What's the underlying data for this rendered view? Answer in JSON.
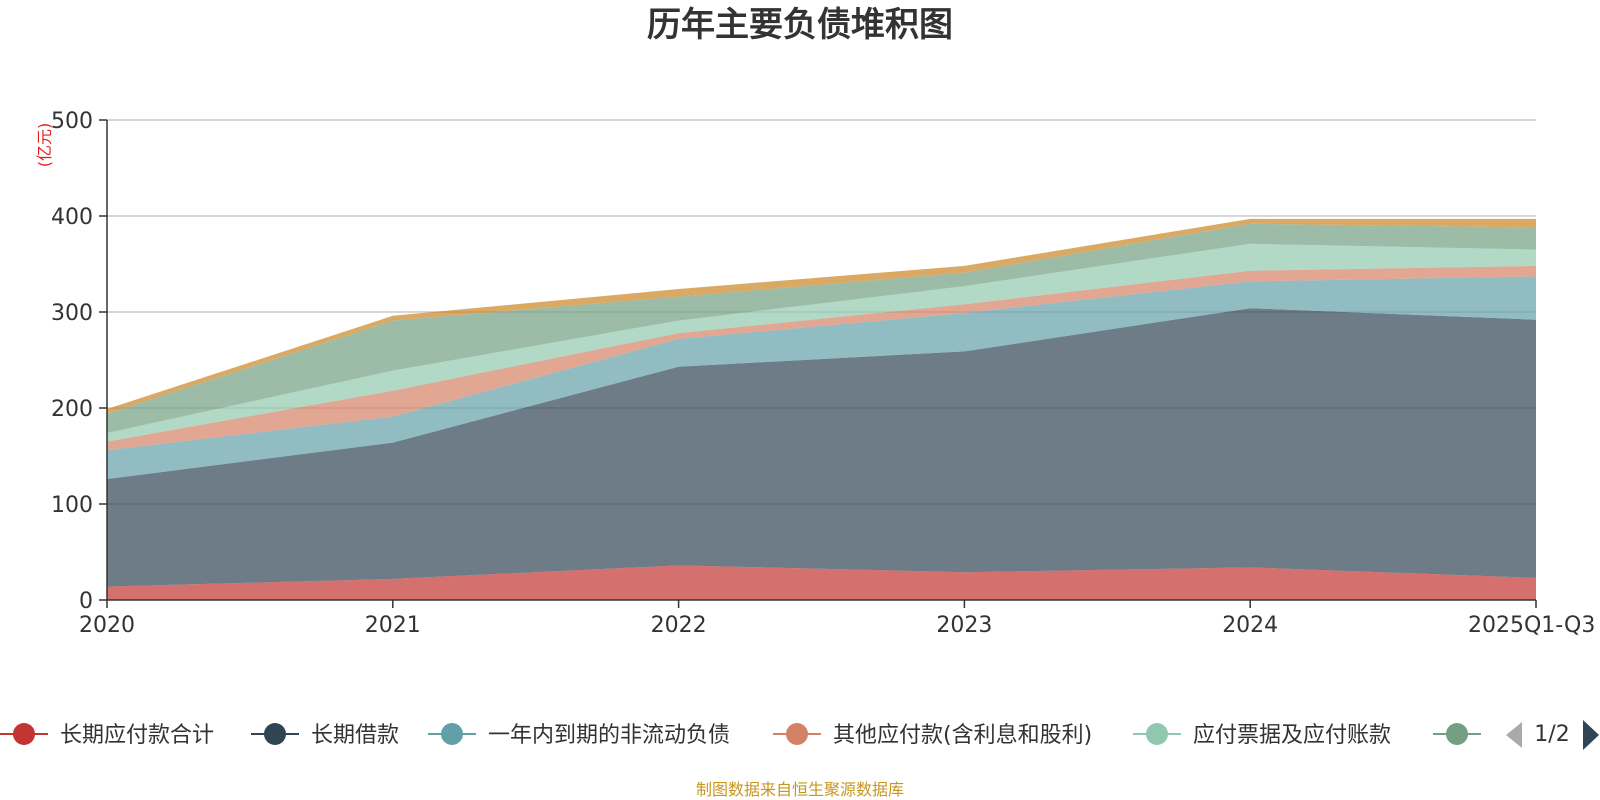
{
  "chart_data": {
    "type": "area",
    "stacked": true,
    "title": "历年主要负债堆积图",
    "unit": "(亿元)",
    "x": [
      "2020",
      "2021",
      "2022",
      "2023",
      "2024",
      "2025Q1-Q3"
    ],
    "ylim": [
      0,
      500
    ],
    "yticks": [
      0,
      100,
      200,
      300,
      400,
      500
    ],
    "grid": true,
    "legend_position": "bottom",
    "series": [
      {
        "name": "长期应付款合计",
        "color": "#c23531",
        "values": [
          14,
          22,
          36,
          29,
          34,
          23
        ]
      },
      {
        "name": "长期借款",
        "color": "#2f4554",
        "values": [
          112,
          142,
          207,
          230,
          270,
          269
        ]
      },
      {
        "name": "一年内到期的非流动负债",
        "color": "#61a0a8",
        "values": [
          30,
          27,
          29,
          40,
          28,
          45
        ]
      },
      {
        "name": "其他应付款(含利息和股利)",
        "color": "#d48265",
        "values": [
          9,
          27,
          6,
          9,
          11,
          11
        ]
      },
      {
        "name": "应付票据及应付账款",
        "color": "#91c7ae",
        "values": [
          9,
          21,
          13,
          19,
          28,
          17
        ]
      },
      {
        "name": "",
        "color": "#749f83",
        "values": [
          20,
          52,
          25,
          14,
          21,
          23
        ]
      },
      {
        "name": "",
        "color": "#ca8622",
        "values": [
          5,
          5,
          8,
          7,
          5,
          9
        ]
      }
    ],
    "legend_visible_count": 6,
    "legend_page": "1/2",
    "source": "制图数据来自恒生聚源数据库"
  }
}
